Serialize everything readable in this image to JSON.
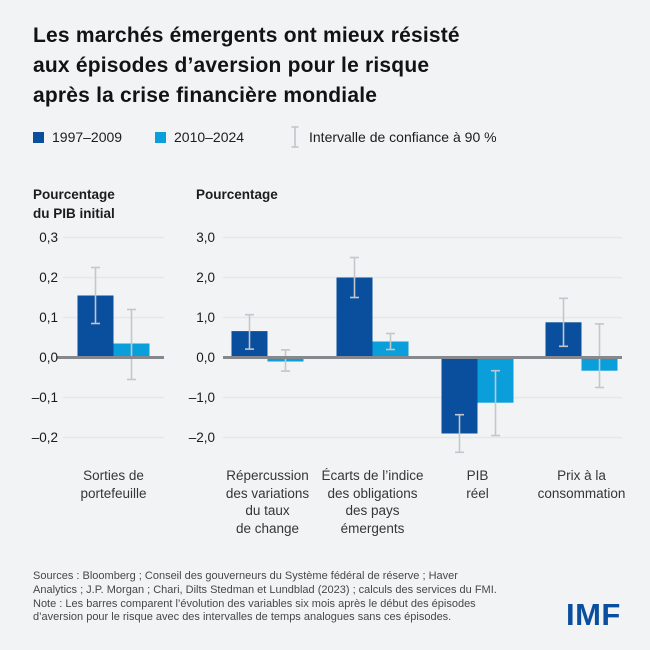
{
  "header": {
    "title_lines": [
      "Les marchés émergents ont mieux résisté",
      "aux épisodes d’aversion pour le risque",
      "après la crise financière mondiale"
    ]
  },
  "legend": {
    "series": [
      {
        "label": "1997–2009",
        "color": "#0a4f9e"
      },
      {
        "label": "2010–2024",
        "color": "#0a9edb"
      }
    ],
    "ci_label": "Intervalle de confiance à 90 %"
  },
  "chart_data": {
    "type": "bar",
    "series_names": [
      "1997–2009",
      "2010–2024"
    ],
    "ci_note": "Intervalle de confiance à 90 %",
    "panels": [
      {
        "axis_title_lines": [
          "Pourcentage",
          "du PIB initial"
        ],
        "ylim": [
          -0.25,
          0.33
        ],
        "ticks": [
          {
            "v": 0.3,
            "label": "0,3"
          },
          {
            "v": 0.2,
            "label": "0,2"
          },
          {
            "v": 0.1,
            "label": "0,1"
          },
          {
            "v": 0.0,
            "label": "0,0"
          },
          {
            "v": -0.1,
            "label": "–0,1"
          },
          {
            "v": -0.2,
            "label": "–0,2"
          }
        ],
        "groups": [
          {
            "label_lines": [
              "Sorties de",
              "portefeuille"
            ],
            "bars": [
              {
                "series": "1997–2009",
                "value": 0.155,
                "ci": [
                  0.085,
                  0.225
                ]
              },
              {
                "series": "2010–2024",
                "value": 0.035,
                "ci": [
                  -0.055,
                  0.12
                ]
              }
            ]
          }
        ]
      },
      {
        "axis_title_lines": [
          "Pourcentage"
        ],
        "ylim": [
          -2.5,
          3.3
        ],
        "ticks": [
          {
            "v": 3.0,
            "label": "3,0"
          },
          {
            "v": 2.0,
            "label": "2,0"
          },
          {
            "v": 1.0,
            "label": "1,0"
          },
          {
            "v": 0.0,
            "label": "0,0"
          },
          {
            "v": -1.0,
            "label": "–1,0"
          },
          {
            "v": -2.0,
            "label": "–2,0"
          }
        ],
        "groups": [
          {
            "label_lines": [
              "Répercussion",
              "des variations",
              "du taux",
              "de change"
            ],
            "bars": [
              {
                "series": "1997–2009",
                "value": 0.66,
                "ci": [
                  0.21,
                  1.07
                ]
              },
              {
                "series": "2010–2024",
                "value": -0.1,
                "ci": [
                  -0.34,
                  0.19
                ]
              }
            ]
          },
          {
            "label_lines": [
              "Écarts de l’indice",
              "des obligations",
              "des pays",
              "émergents"
            ],
            "bars": [
              {
                "series": "1997–2009",
                "value": 2.0,
                "ci": [
                  1.5,
                  2.5
                ]
              },
              {
                "series": "2010–2024",
                "value": 0.4,
                "ci": [
                  0.2,
                  0.6
                ]
              }
            ]
          },
          {
            "label_lines": [
              "PIB",
              "réel"
            ],
            "bars": [
              {
                "series": "1997–2009",
                "value": -1.9,
                "ci": [
                  -2.37,
                  -1.43
                ]
              },
              {
                "series": "2010–2024",
                "value": -1.13,
                "ci": [
                  -1.95,
                  -0.33
                ]
              }
            ]
          },
          {
            "label_lines": [
              "Prix à la",
              "consommation"
            ],
            "bars": [
              {
                "series": "1997–2009",
                "value": 0.88,
                "ci": [
                  0.28,
                  1.48
                ]
              },
              {
                "series": "2010–2024",
                "value": -0.33,
                "ci": [
                  -0.75,
                  0.84
                ]
              }
            ]
          }
        ]
      }
    ]
  },
  "footer": {
    "lines": [
      "Sources : Bloomberg ; Conseil des gouverneurs du Système fédéral de réserve ; Haver",
      "Analytics ; J.P. Morgan ; Chari, Dilts Stedman et Lundblad (2023) ; calculs des services du FMI.",
      "Note : Les barres comparent l’évolution des variables six mois après le début des épisodes",
      "d’aversion pour le risque avec des intervalles de temps analogues sans ces épisodes."
    ],
    "logo": "IMF"
  },
  "colors": {
    "background": "#f2f3f5",
    "series1": "#0a4f9e",
    "series2": "#0a9edb",
    "grid": "#e5e7ea",
    "zero_line": "#85888c",
    "error_bar": "#c3c6ca",
    "logo": "#0a4f9e"
  }
}
